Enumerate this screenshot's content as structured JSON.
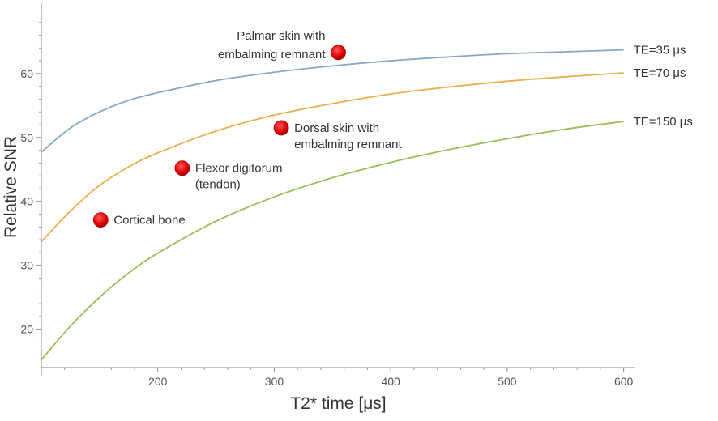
{
  "chart_data": {
    "type": "line",
    "xlabel": "T2* time [μs]",
    "ylabel": "Relative SNR",
    "xlim": [
      100,
      610
    ],
    "ylim": [
      14,
      71
    ],
    "xticks": [
      200,
      300,
      400,
      500,
      600
    ],
    "yticks": [
      20,
      30,
      40,
      50,
      60
    ],
    "grid": false,
    "series": [
      {
        "name": "TE=35 μs",
        "color": "#8aa6c8",
        "x": [
          100,
          125,
          150,
          175,
          200,
          250,
          300,
          350,
          400,
          450,
          500,
          550,
          600
        ],
        "y": [
          47.7,
          51.5,
          54.0,
          55.8,
          57.0,
          58.9,
          60.2,
          61.2,
          62.0,
          62.6,
          63.1,
          63.4,
          63.7
        ]
      },
      {
        "name": "TE=70 μs",
        "color": "#e8b050",
        "x": [
          100,
          125,
          150,
          175,
          200,
          250,
          300,
          350,
          400,
          450,
          500,
          550,
          600
        ],
        "y": [
          33.7,
          38.5,
          42.5,
          45.4,
          47.6,
          51.0,
          53.5,
          55.3,
          56.8,
          57.9,
          58.8,
          59.5,
          60.1
        ]
      },
      {
        "name": "TE=150 μs",
        "color": "#9cbe58",
        "x": [
          100,
          125,
          150,
          175,
          200,
          250,
          300,
          350,
          400,
          450,
          500,
          550,
          600
        ],
        "y": [
          15.2,
          20.5,
          25.0,
          28.8,
          31.9,
          36.9,
          40.7,
          43.7,
          46.1,
          48.1,
          49.8,
          51.3,
          52.5
        ]
      }
    ],
    "points": [
      {
        "label": [
          "Cortical bone"
        ],
        "x": 151,
        "y": 37.1,
        "color": "#e00000"
      },
      {
        "label": [
          "Flexor digitorum",
          "(tendon)"
        ],
        "x": 221,
        "y": 45.2,
        "color": "#e00000"
      },
      {
        "label": [
          "Dorsal skin with",
          "embalming remnant"
        ],
        "x": 306,
        "y": 51.5,
        "color": "#e00000"
      },
      {
        "label": [
          "Palmar skin with",
          "embalming remnant"
        ],
        "x": 355,
        "y": 63.3,
        "color": "#e00000"
      }
    ]
  }
}
